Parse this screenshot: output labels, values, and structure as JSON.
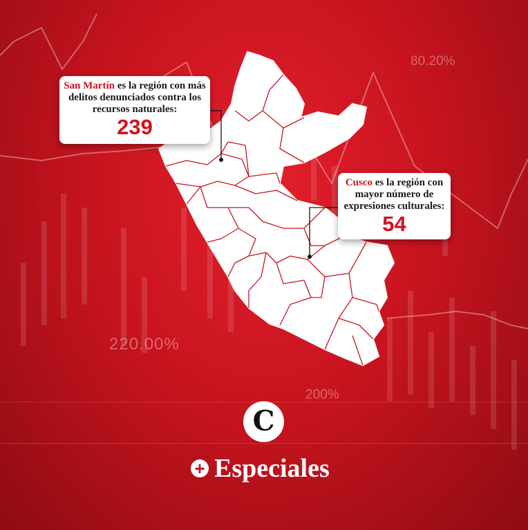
{
  "background": {
    "percent_labels": [
      "80.20%",
      "220.00%",
      "200%"
    ]
  },
  "callouts": {
    "san_martin": {
      "region": "San Martín",
      "text_line1": " es la región con más",
      "text_line2": "delitos denunciados contra los",
      "text_line3": "recursos naturales:",
      "value": "239"
    },
    "cusco": {
      "region": "Cusco",
      "text_line1": " es la región con",
      "text_line2": "mayor número de",
      "text_line3": "expresiones culturales:",
      "value": "54"
    }
  },
  "brand": {
    "logo_letter": "C",
    "plus": "+",
    "name": "Especiales"
  },
  "colors": {
    "accent_red": "#d4121e",
    "background_red": "#c8141f",
    "white": "#ffffff"
  },
  "icons": [
    "el-comercio-logo-icon",
    "plus-icon"
  ]
}
